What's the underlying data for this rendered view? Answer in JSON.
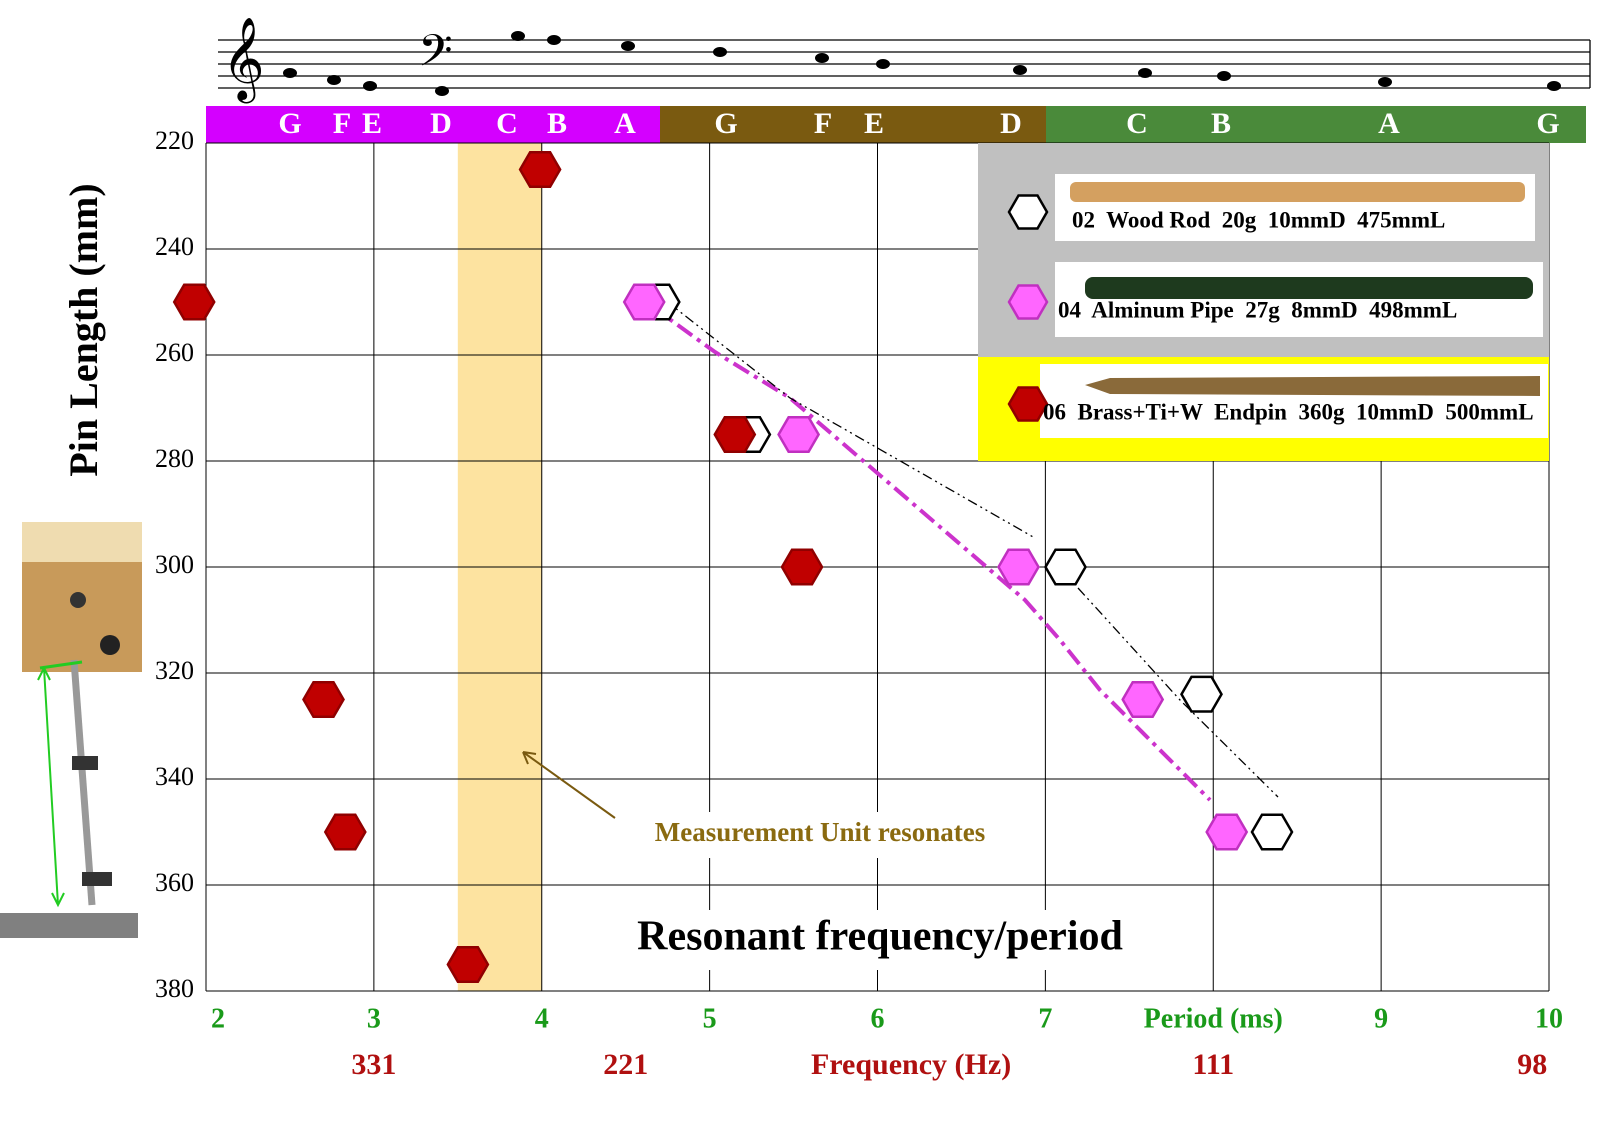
{
  "chart_data": {
    "type": "scatter",
    "y_axis_label": "Pin Length (mm)",
    "plot_title": "Resonant frequency/period",
    "annotation": "Measurement Unit resonates",
    "highlight_band": [
      3.5,
      4
    ],
    "highlight_color": "#fde3a0",
    "xlim": [
      2,
      10
    ],
    "ylim": [
      220,
      380
    ],
    "y_inverted": true,
    "grid": true,
    "xticks": [
      2,
      3,
      4,
      5,
      6,
      7,
      {
        "value": 8,
        "label": "Period (ms)"
      },
      9,
      10
    ],
    "secondary_xticks": [
      {
        "value": 3,
        "label": "331"
      },
      {
        "value": 4.5,
        "label": "221"
      },
      {
        "value": 6.2,
        "label": "Frequency (Hz)"
      },
      {
        "value": 8,
        "label": "111"
      },
      {
        "value": 9.9,
        "label": "98"
      }
    ],
    "yticks": [
      220,
      240,
      260,
      280,
      300,
      320,
      340,
      360,
      380
    ],
    "note_names": [
      "G",
      "F",
      "E",
      "D",
      "C",
      "B",
      "A",
      "G",
      "F",
      "E",
      "D",
      "C",
      "B",
      "A",
      "G"
    ],
    "series": [
      {
        "name": "02  Wood Rod  20g  10mmD  475mmL",
        "color": "#ffffff",
        "stroke": "#000000",
        "x": [
          4.7,
          5.24,
          7.12,
          7.93,
          8.35
        ],
        "values": [
          250,
          275,
          300,
          324,
          350
        ]
      },
      {
        "name": "04  Alminum Pipe  27g  8mmD  498mmL",
        "color": "#ff66ff",
        "stroke": "#c030c0",
        "x": [
          4.61,
          5.53,
          6.84,
          7.58,
          8.08
        ],
        "values": [
          250,
          275,
          300,
          325,
          350
        ]
      },
      {
        "name": "06  Brass+Ti+W  Endpin  360g  10mmD  500mmL",
        "color": "#c00000",
        "stroke": "#900000",
        "x": [
          3.99,
          1.93,
          5.15,
          5.55,
          2.7,
          2.83,
          3.56
        ],
        "values": [
          225,
          250,
          275,
          300,
          325,
          350,
          375
        ]
      }
    ]
  }
}
